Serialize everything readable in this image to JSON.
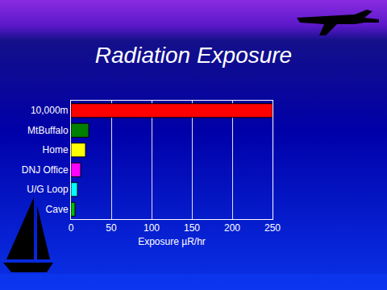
{
  "chart_data": {
    "type": "bar",
    "title": "Radiation Exposure",
    "orientation": "horizontal",
    "categories": [
      "10,000m",
      "MtBuffalo",
      "Home",
      "DNJ Office",
      "U/G Loop",
      "Cave"
    ],
    "values": [
      250,
      22,
      18,
      12,
      8,
      5
    ],
    "colors": [
      "#ff0000",
      "#008000",
      "#ffff00",
      "#ff00ff",
      "#00ffff",
      "#00c000"
    ],
    "x_label": "Exposure µR/hr",
    "xlim": [
      0,
      250
    ],
    "xticks": [
      0,
      50,
      100,
      150,
      200,
      250
    ],
    "grid": true
  }
}
